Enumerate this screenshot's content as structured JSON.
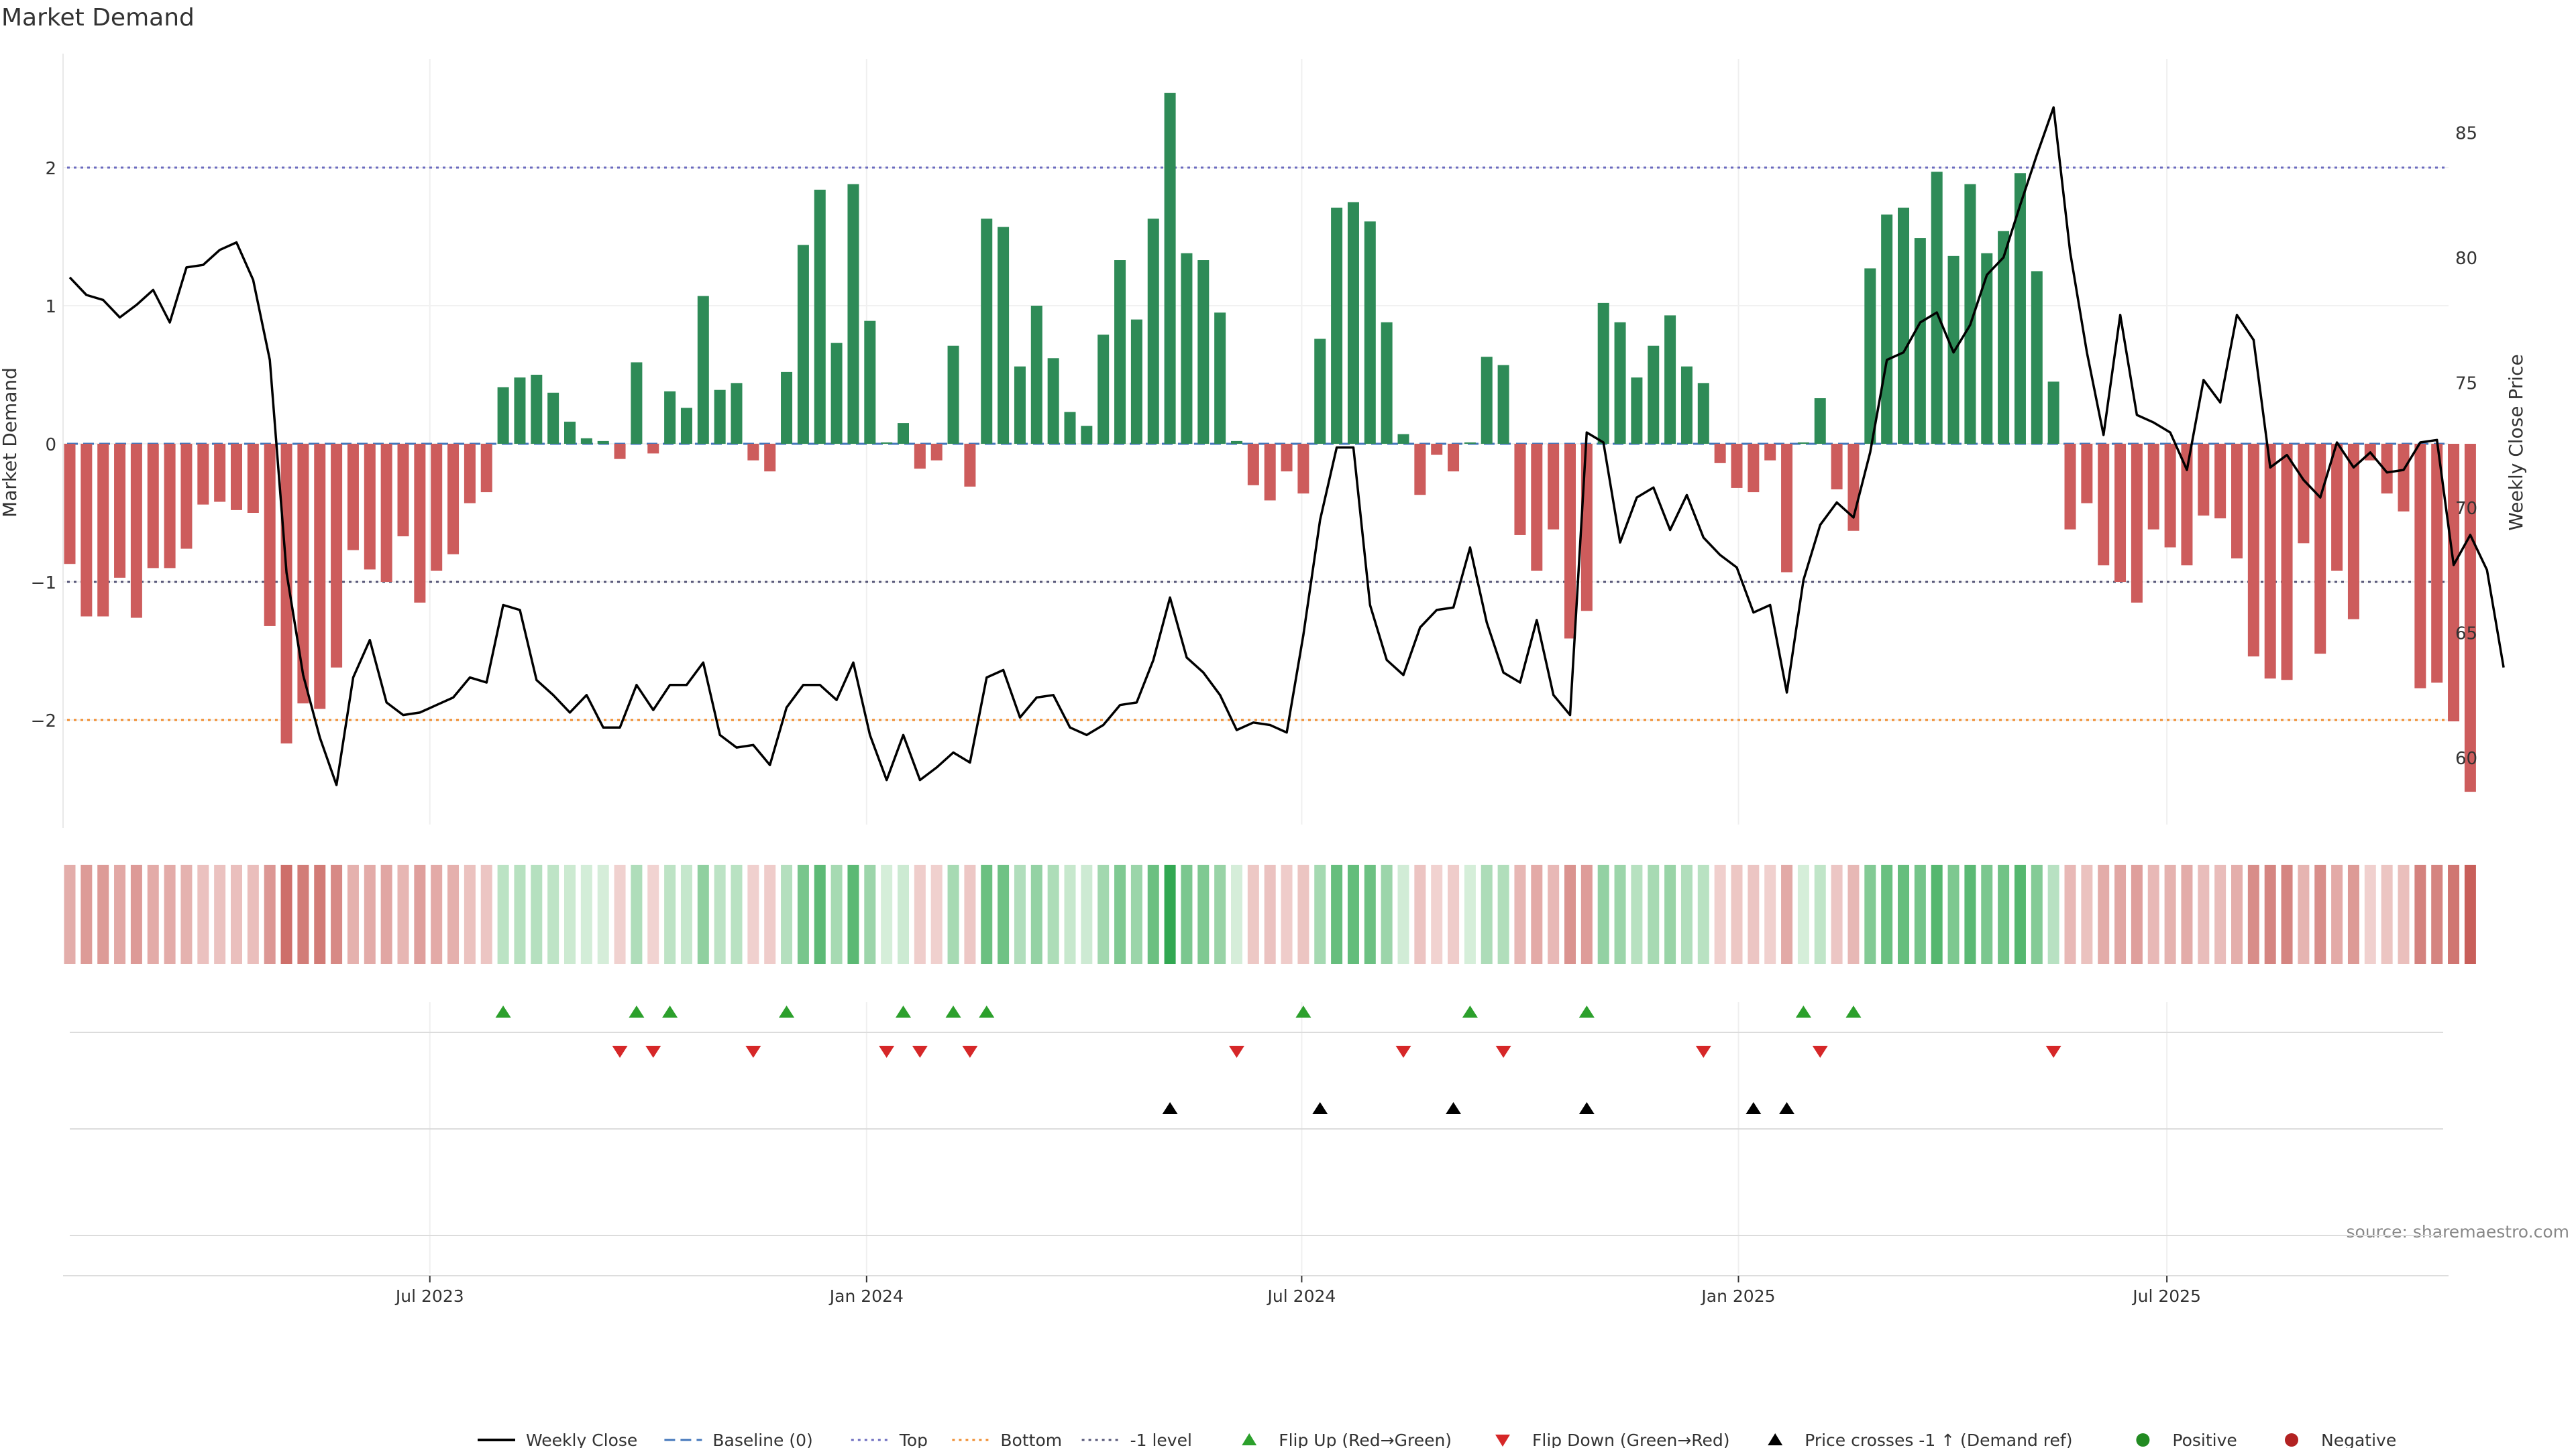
{
  "chart_data": {
    "type": "bar",
    "title": "Market Demand",
    "ylabel": "Market Demand",
    "y2label": "Weekly Close Price",
    "source": "source: sharemaestro.com",
    "ylim": [
      -2.8,
      2.8
    ],
    "y2lim": [
      57,
      87
    ],
    "yticks": [
      {
        "value": 2,
        "label": "2"
      },
      {
        "value": 1,
        "label": "1"
      },
      {
        "value": 0,
        "label": "0"
      },
      {
        "value": -1,
        "label": "−1"
      },
      {
        "value": -2,
        "label": "−2"
      }
    ],
    "y2ticks": [
      {
        "value": 85,
        "label": "85"
      },
      {
        "value": 80,
        "label": "80"
      },
      {
        "value": 75,
        "label": "75"
      },
      {
        "value": 70,
        "label": "70"
      },
      {
        "value": 65,
        "label": "65"
      },
      {
        "value": 60,
        "label": "60"
      }
    ],
    "reference_lines": [
      {
        "name": "Top",
        "value": 2,
        "color": "#6b6bbf"
      },
      {
        "name": "Bottom",
        "value": -2,
        "color": "#f08c2e"
      },
      {
        "name": "-1 level",
        "value": -1,
        "color": "#555577"
      },
      {
        "name": "Baseline (0)",
        "value": 0,
        "color": "#4477bb"
      }
    ],
    "xticks": [
      {
        "index": 21.6,
        "label": "Jul 2023"
      },
      {
        "index": 47.8,
        "label": "Jan 2024"
      },
      {
        "index": 73.9,
        "label": "Jul 2024"
      },
      {
        "index": 100.1,
        "label": "Jan 2025"
      },
      {
        "index": 125.8,
        "label": "Jul 2025"
      }
    ],
    "demand": [
      -0.87,
      -1.25,
      -1.25,
      -0.97,
      -1.26,
      -0.9,
      -0.9,
      -0.76,
      -0.44,
      -0.42,
      -0.48,
      -0.5,
      -1.32,
      -2.17,
      -1.88,
      -1.92,
      -1.62,
      -0.77,
      -0.91,
      -1.0,
      -0.67,
      -1.15,
      -0.92,
      -0.8,
      -0.43,
      -0.35,
      0.41,
      0.48,
      0.5,
      0.37,
      0.16,
      0.04,
      0.02,
      -0.11,
      0.59,
      -0.07,
      0.38,
      0.26,
      1.07,
      0.39,
      0.44,
      -0.12,
      -0.2,
      0.52,
      1.44,
      1.84,
      0.73,
      1.88,
      0.89,
      0.01,
      0.15,
      -0.18,
      -0.12,
      0.71,
      -0.31,
      1.63,
      1.57,
      0.56,
      1.0,
      0.62,
      0.23,
      0.13,
      0.79,
      1.33,
      0.9,
      1.63,
      2.54,
      1.38,
      1.33,
      0.95,
      0.02,
      -0.3,
      -0.41,
      -0.2,
      -0.36,
      0.76,
      1.71,
      1.75,
      1.61,
      0.88,
      0.07,
      -0.37,
      -0.08,
      -0.2,
      0.01,
      0.63,
      0.57,
      -0.66,
      -0.92,
      -0.62,
      -1.41,
      -1.21,
      1.02,
      0.88,
      0.48,
      0.71,
      0.93,
      0.56,
      0.44,
      -0.14,
      -0.32,
      -0.35,
      -0.12,
      -0.93,
      0.01,
      0.33,
      -0.33,
      -0.63,
      1.27,
      1.66,
      1.71,
      1.49,
      1.97,
      1.36,
      1.88,
      1.38,
      1.54,
      1.96,
      1.25,
      0.45,
      -0.62,
      -0.43,
      -0.88,
      -1.0,
      -1.15,
      -0.62,
      -0.75,
      -0.88,
      -0.52,
      -0.54,
      -0.83,
      -1.54,
      -1.7,
      -1.71,
      -0.72,
      -1.52,
      -0.92,
      -1.27,
      -0.12,
      -0.36,
      -0.49,
      -1.77,
      -1.73,
      -2.01,
      -2.52
    ],
    "close": [
      79.2,
      78.5,
      78.3,
      77.6,
      78.1,
      78.7,
      77.4,
      79.6,
      79.7,
      80.3,
      80.6,
      79.1,
      75.9,
      67.4,
      63.3,
      60.8,
      58.9,
      63.2,
      64.7,
      62.2,
      61.7,
      61.8,
      62.1,
      62.4,
      63.2,
      63.0,
      66.1,
      65.9,
      63.1,
      62.5,
      61.8,
      62.5,
      61.2,
      61.2,
      62.9,
      61.9,
      62.9,
      62.9,
      63.8,
      60.9,
      60.4,
      60.5,
      59.7,
      62.0,
      62.9,
      62.9,
      62.3,
      63.8,
      60.9,
      59.1,
      60.9,
      59.1,
      59.6,
      60.2,
      59.8,
      63.2,
      63.5,
      61.6,
      62.4,
      62.5,
      61.2,
      60.9,
      61.3,
      62.1,
      62.2,
      63.9,
      66.4,
      64.0,
      63.4,
      62.5,
      61.1,
      61.4,
      61.3,
      61.0,
      64.9,
      69.5,
      72.4,
      72.4,
      66.1,
      63.9,
      63.3,
      65.2,
      65.9,
      66.0,
      68.4,
      65.4,
      63.4,
      63.0,
      65.5,
      62.5,
      61.7,
      73.0,
      72.6,
      68.6,
      70.4,
      70.8,
      69.1,
      70.5,
      68.8,
      68.1,
      67.6,
      65.8,
      66.1,
      62.6,
      67.1,
      69.3,
      70.2,
      69.6,
      72.2,
      75.9,
      76.2,
      77.4,
      77.8,
      76.2,
      77.3,
      79.3,
      80.0,
      82.1,
      84.1,
      86.0,
      80.2,
      76.2,
      72.9,
      77.7,
      73.7,
      73.4,
      73.0,
      71.5,
      75.1,
      74.2,
      77.7,
      76.7,
      71.6,
      72.1,
      71.1,
      70.4,
      72.6,
      71.6,
      72.2,
      71.4,
      71.5,
      72.6,
      72.7,
      67.7,
      68.9,
      67.5,
      63.6
    ],
    "flip_up_indices": [
      26,
      34,
      36,
      43,
      50,
      53,
      55,
      74,
      84,
      91,
      104,
      107
    ],
    "flip_down_indices": [
      33,
      35,
      41,
      49,
      51,
      54,
      70,
      80,
      86,
      98,
      105,
      119
    ],
    "price_cross_indices": [
      66,
      75,
      83,
      91,
      101,
      103
    ],
    "colors": {
      "positive_bar": "#2e8b57",
      "negative_bar": "#cd5c5c",
      "close_line": "#000000",
      "flip_up": "#2ca02c",
      "flip_down": "#d62728",
      "price_cross": "#000000",
      "positive_dot": "#228b22",
      "negative_dot": "#b22222"
    },
    "legend": [
      {
        "label": "Weekly Close",
        "symbol": "line",
        "color": "#000000"
      },
      {
        "label": "Baseline (0)",
        "symbol": "dash",
        "color": "#4477bb"
      },
      {
        "label": "Top",
        "symbol": "dot",
        "color": "#6b6bbf"
      },
      {
        "label": "Bottom",
        "symbol": "dot",
        "color": "#f08c2e"
      },
      {
        "label": "-1 level",
        "symbol": "dot",
        "color": "#555577"
      },
      {
        "label": "Flip Up (Red→Green)",
        "symbol": "tri-up",
        "color": "#2ca02c"
      },
      {
        "label": "Flip Down (Green→Red)",
        "symbol": "tri-down",
        "color": "#d62728"
      },
      {
        "label": "Price crosses -1 ↑ (Demand ref)",
        "symbol": "tri-up",
        "color": "#000000"
      },
      {
        "label": "Positive",
        "symbol": "circle",
        "color": "#228b22"
      },
      {
        "label": "Negative",
        "symbol": "circle",
        "color": "#b22222"
      }
    ],
    "legend_position": "bottom-center"
  }
}
